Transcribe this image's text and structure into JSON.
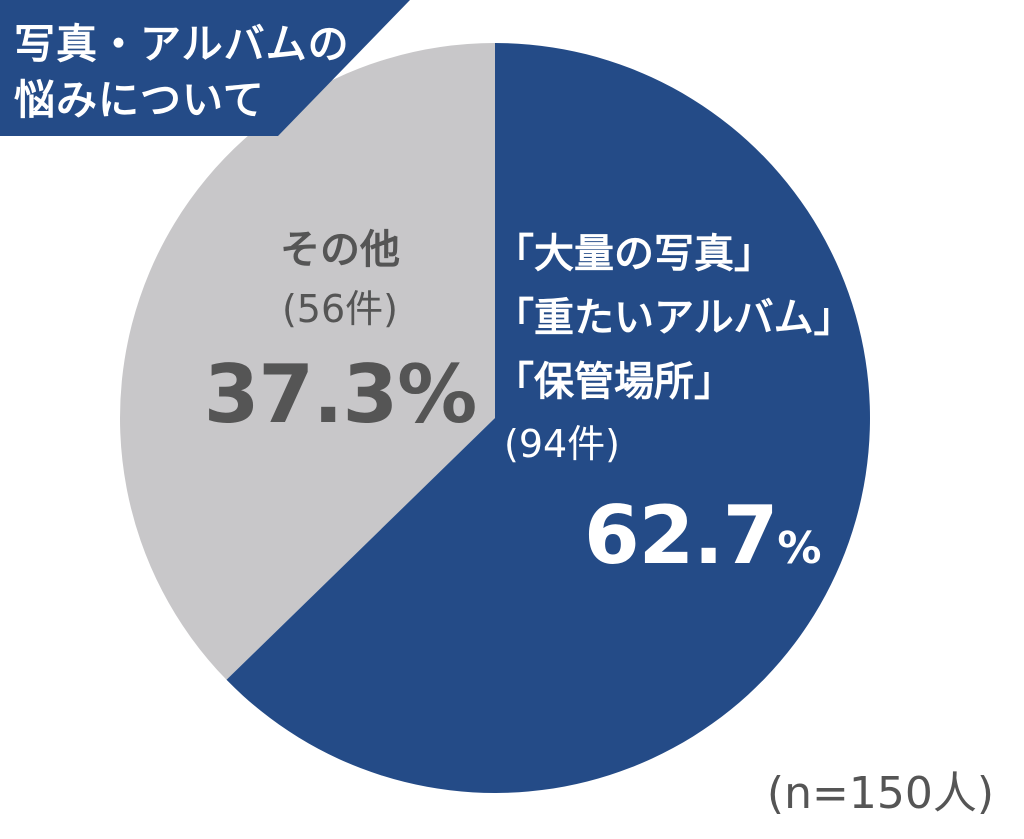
{
  "title": {
    "line1": "写真・アルバムの",
    "line2": "悩みについて"
  },
  "sample_note": "(n=150人)",
  "colors": {
    "main": "#244b87",
    "other": "#c8c7c9",
    "title_bg": "#244b87",
    "muted_text": "#555555"
  },
  "chart_data": {
    "type": "pie",
    "slices": [
      {
        "label_lines": [
          "「大量の写真」",
          "「重たいアルバム」",
          "「保管場所」"
        ],
        "count_text": "(94件)",
        "value": 62.7,
        "pct_number": "62.7",
        "pct_sign": "%"
      },
      {
        "label_lines": [
          "その他"
        ],
        "count_text": "(56件)",
        "value": 37.3,
        "pct_text": "37.3%"
      }
    ]
  }
}
